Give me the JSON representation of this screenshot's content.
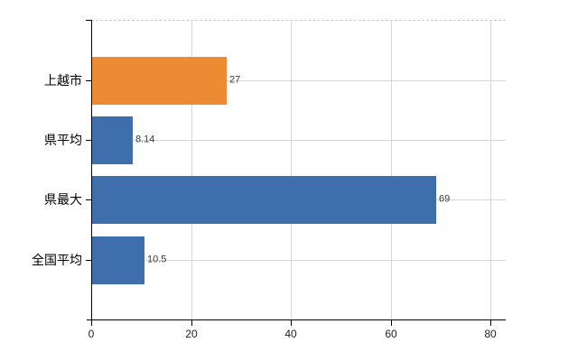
{
  "chart_data": {
    "type": "bar",
    "orientation": "horizontal",
    "title": "",
    "xlabel": "",
    "ylabel": "",
    "categories": [
      "上越市",
      "県平均",
      "県最大",
      "全国平均"
    ],
    "values": [
      27,
      8.14,
      69,
      10.5
    ],
    "value_labels": [
      "27",
      "8.14",
      "69",
      "10.5"
    ],
    "bar_colors": [
      "#ec8b33",
      "#3e6fac",
      "#3e6fac",
      "#3e6fac"
    ],
    "x_ticks": [
      0,
      20,
      40,
      60,
      80
    ],
    "x_tick_labels": [
      "0",
      "20",
      "40",
      "60",
      "80"
    ],
    "xlim": [
      0,
      83
    ],
    "grid": true,
    "legend": "none",
    "background": "#ffffff"
  },
  "colors": {
    "highlight_bar": "#ec8b33",
    "default_bar": "#3e6fac",
    "gridline": "#d6d6d6",
    "boundary_gridline": "#c9c9c9",
    "axis_line": "#000000",
    "category_label": "#000000",
    "value_label": "#3a3a3a",
    "tick_label": "#222222"
  }
}
